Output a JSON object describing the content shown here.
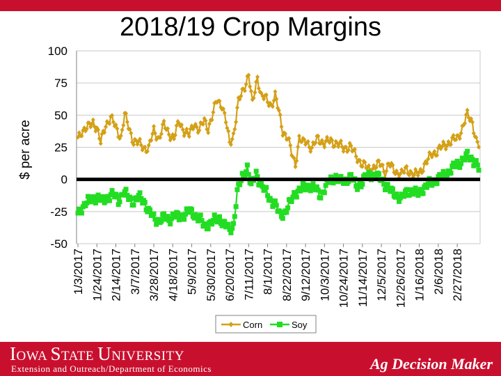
{
  "colors": {
    "brand_red": "#c8102e",
    "corn": "#d4a017",
    "soy": "#22dd22",
    "zero_line": "#000000"
  },
  "footer": {
    "university": "Iowa State University",
    "extension": "Extension and Outreach/Department of Economics",
    "brand": "Ag Decision Maker"
  },
  "chart_data": {
    "type": "line",
    "title": "2018/19 Crop Margins",
    "xlabel": "",
    "ylabel": "$ per acre",
    "ylim": [
      -50,
      100
    ],
    "yticks": [
      -50,
      -25,
      0,
      25,
      50,
      75,
      100
    ],
    "xtick_labels": [
      "1/3/2017",
      "1/24/2017",
      "2/14/2017",
      "3/7/2017",
      "3/28/2017",
      "4/18/2017",
      "5/9/2017",
      "5/30/2017",
      "6/20/2017",
      "7/11/2017",
      "8/1/2017",
      "8/22/2017",
      "9/12/2017",
      "10/3/2017",
      "10/24/2017",
      "11/14/2017",
      "12/5/2017",
      "12/26/2017",
      "1/16/2018",
      "2/6/2018",
      "2/27/2018"
    ],
    "xtick_positions": [
      0,
      15,
      30,
      45,
      60,
      75,
      90,
      105,
      120,
      135,
      150,
      165,
      180,
      195,
      210,
      225,
      240,
      255,
      270,
      285,
      300
    ],
    "x_points": 318,
    "legend": "bottom-center",
    "reference_line": 0,
    "series": [
      {
        "name": "Corn",
        "color": "#d4a017",
        "marker": "diamond",
        "anchors": [
          [
            0,
            32
          ],
          [
            3,
            38
          ],
          [
            8,
            40
          ],
          [
            12,
            45
          ],
          [
            15,
            40
          ],
          [
            18,
            28
          ],
          [
            22,
            43
          ],
          [
            26,
            48
          ],
          [
            30,
            40
          ],
          [
            34,
            33
          ],
          [
            37,
            50
          ],
          [
            41,
            38
          ],
          [
            44,
            30
          ],
          [
            48,
            28
          ],
          [
            52,
            25
          ],
          [
            56,
            24
          ],
          [
            60,
            38
          ],
          [
            64,
            32
          ],
          [
            68,
            42
          ],
          [
            72,
            36
          ],
          [
            76,
            32
          ],
          [
            80,
            45
          ],
          [
            84,
            38
          ],
          [
            88,
            34
          ],
          [
            92,
            44
          ],
          [
            96,
            38
          ],
          [
            100,
            46
          ],
          [
            103,
            40
          ],
          [
            106,
            48
          ],
          [
            110,
            62
          ],
          [
            114,
            58
          ],
          [
            117,
            45
          ],
          [
            120,
            28
          ],
          [
            123,
            35
          ],
          [
            127,
            60
          ],
          [
            131,
            70
          ],
          [
            135,
            82
          ],
          [
            138,
            58
          ],
          [
            142,
            80
          ],
          [
            145,
            65
          ],
          [
            149,
            62
          ],
          [
            153,
            58
          ],
          [
            156,
            65
          ],
          [
            159,
            52
          ],
          [
            162,
            38
          ],
          [
            166,
            32
          ],
          [
            169,
            20
          ],
          [
            172,
            12
          ],
          [
            175,
            32
          ],
          [
            178,
            28
          ],
          [
            181,
            30
          ],
          [
            185,
            24
          ],
          [
            190,
            32
          ],
          [
            195,
            28
          ],
          [
            200,
            30
          ],
          [
            205,
            28
          ],
          [
            210,
            24
          ],
          [
            215,
            26
          ],
          [
            220,
            18
          ],
          [
            225,
            12
          ],
          [
            230,
            8
          ],
          [
            235,
            10
          ],
          [
            240,
            12
          ],
          [
            243,
            5
          ],
          [
            246,
            12
          ],
          [
            249,
            8
          ],
          [
            252,
            6
          ],
          [
            256,
            4
          ],
          [
            260,
            8
          ],
          [
            263,
            6
          ],
          [
            266,
            3
          ],
          [
            270,
            5
          ],
          [
            273,
            10
          ],
          [
            277,
            15
          ],
          [
            280,
            20
          ],
          [
            284,
            22
          ],
          [
            288,
            25
          ],
          [
            292,
            28
          ],
          [
            296,
            30
          ],
          [
            300,
            32
          ],
          [
            304,
            40
          ],
          [
            308,
            50
          ],
          [
            312,
            45
          ],
          [
            315,
            30
          ],
          [
            317,
            26
          ]
        ]
      },
      {
        "name": "Soy",
        "color": "#22dd22",
        "marker": "square",
        "anchors": [
          [
            0,
            -27
          ],
          [
            3,
            -22
          ],
          [
            7,
            -18
          ],
          [
            11,
            -15
          ],
          [
            15,
            -14
          ],
          [
            19,
            -17
          ],
          [
            23,
            -14
          ],
          [
            28,
            -12
          ],
          [
            32,
            -16
          ],
          [
            36,
            -10
          ],
          [
            40,
            -14
          ],
          [
            44,
            -17
          ],
          [
            48,
            -14
          ],
          [
            52,
            -16
          ],
          [
            56,
            -25
          ],
          [
            60,
            -30
          ],
          [
            64,
            -32
          ],
          [
            68,
            -30
          ],
          [
            72,
            -31
          ],
          [
            76,
            -28
          ],
          [
            80,
            -30
          ],
          [
            84,
            -27
          ],
          [
            88,
            -25
          ],
          [
            92,
            -27
          ],
          [
            96,
            -30
          ],
          [
            100,
            -37
          ],
          [
            104,
            -34
          ],
          [
            108,
            -32
          ],
          [
            112,
            -30
          ],
          [
            116,
            -35
          ],
          [
            120,
            -40
          ],
          [
            123,
            -35
          ],
          [
            126,
            -10
          ],
          [
            130,
            2
          ],
          [
            134,
            10
          ],
          [
            137,
            -6
          ],
          [
            141,
            5
          ],
          [
            145,
            -5
          ],
          [
            149,
            -10
          ],
          [
            152,
            -15
          ],
          [
            156,
            -20
          ],
          [
            160,
            -28
          ],
          [
            164,
            -25
          ],
          [
            168,
            -18
          ],
          [
            172,
            -10
          ],
          [
            176,
            -8
          ],
          [
            180,
            -6
          ],
          [
            184,
            -5
          ],
          [
            188,
            -8
          ],
          [
            192,
            -12
          ],
          [
            196,
            -6
          ],
          [
            200,
            0
          ],
          [
            204,
            2
          ],
          [
            208,
            -2
          ],
          [
            212,
            0
          ],
          [
            216,
            2
          ],
          [
            220,
            -5
          ],
          [
            224,
            -3
          ],
          [
            228,
            2
          ],
          [
            232,
            4
          ],
          [
            236,
            2
          ],
          [
            240,
            0
          ],
          [
            244,
            -5
          ],
          [
            248,
            -10
          ],
          [
            252,
            -12
          ],
          [
            256,
            -15
          ],
          [
            260,
            -10
          ],
          [
            264,
            -8
          ],
          [
            268,
            -12
          ],
          [
            272,
            -8
          ],
          [
            276,
            -5
          ],
          [
            280,
            -2
          ],
          [
            284,
            0
          ],
          [
            288,
            2
          ],
          [
            292,
            5
          ],
          [
            296,
            8
          ],
          [
            300,
            12
          ],
          [
            304,
            15
          ],
          [
            308,
            18
          ],
          [
            312,
            16
          ],
          [
            315,
            12
          ],
          [
            317,
            8
          ]
        ]
      }
    ]
  }
}
